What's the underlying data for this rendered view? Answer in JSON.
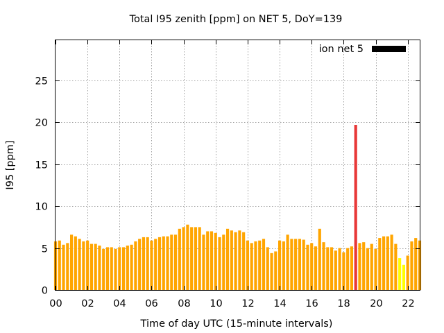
{
  "chart_data": {
    "type": "bar",
    "title": "Total I95 zenith [ppm] on NET 5, DoY=139",
    "xlabel": "Time of day UTC (15-minute intervals)",
    "ylabel": "I95 [ppm]",
    "xlim": [
      0,
      22.75
    ],
    "ylim": [
      0,
      29.8
    ],
    "x_interval_hours": 0.25,
    "x_tick_values": [
      0,
      2,
      4,
      6,
      8,
      10,
      12,
      14,
      16,
      18,
      20,
      22
    ],
    "x_tick_labels": [
      "00",
      "02",
      "04",
      "06",
      "08",
      "10",
      "12",
      "14",
      "16",
      "18",
      "20",
      "22"
    ],
    "y_tick_values": [
      0,
      5,
      10,
      15,
      20,
      25
    ],
    "y_tick_labels": [
      "0",
      "5",
      "10",
      "15",
      "20",
      "25"
    ],
    "grid": true,
    "legend": {
      "position": "top-right",
      "label": "ion net 5",
      "color": "#000000"
    },
    "colors": {
      "normal": "#ffa500",
      "low": "#ffff00",
      "high": "#e83838"
    },
    "series": [
      {
        "name": "ion net 5",
        "values": [
          5.8,
          5.9,
          5.4,
          5.6,
          6.6,
          6.4,
          6.1,
          5.8,
          5.9,
          5.5,
          5.5,
          5.3,
          4.9,
          5.1,
          5.1,
          4.9,
          5.1,
          5.1,
          5.3,
          5.4,
          5.8,
          6.1,
          6.3,
          6.3,
          5.9,
          6.1,
          6.3,
          6.4,
          6.4,
          6.6,
          6.6,
          7.3,
          7.5,
          7.8,
          7.5,
          7.5,
          7.5,
          6.6,
          7.0,
          7.0,
          6.8,
          6.3,
          6.6,
          7.3,
          7.1,
          6.9,
          7.1,
          6.9,
          5.9,
          5.6,
          5.8,
          5.9,
          6.1,
          5.1,
          4.4,
          4.6,
          5.9,
          5.8,
          6.6,
          6.1,
          6.1,
          6.1,
          6.0,
          5.4,
          5.6,
          5.2,
          7.3,
          5.7,
          5.1,
          5.1,
          4.7,
          5.0,
          4.5,
          5.0,
          5.2,
          19.7,
          5.6,
          5.7,
          5.0,
          5.5,
          4.9,
          6.2,
          6.4,
          6.4,
          6.6,
          5.5,
          3.8,
          3.0,
          4.1,
          5.8,
          6.2,
          5.9
        ],
        "colors": [
          "normal",
          "normal",
          "normal",
          "normal",
          "normal",
          "normal",
          "normal",
          "normal",
          "normal",
          "normal",
          "normal",
          "normal",
          "normal",
          "normal",
          "normal",
          "normal",
          "normal",
          "normal",
          "normal",
          "normal",
          "normal",
          "normal",
          "normal",
          "normal",
          "normal",
          "normal",
          "normal",
          "normal",
          "normal",
          "normal",
          "normal",
          "normal",
          "normal",
          "normal",
          "normal",
          "normal",
          "normal",
          "normal",
          "normal",
          "normal",
          "normal",
          "normal",
          "normal",
          "normal",
          "normal",
          "normal",
          "normal",
          "normal",
          "normal",
          "normal",
          "normal",
          "normal",
          "normal",
          "normal",
          "normal",
          "normal",
          "normal",
          "normal",
          "normal",
          "normal",
          "normal",
          "normal",
          "normal",
          "normal",
          "normal",
          "normal",
          "normal",
          "normal",
          "normal",
          "normal",
          "normal",
          "normal",
          "normal",
          "normal",
          "normal",
          "high",
          "normal",
          "normal",
          "normal",
          "normal",
          "normal",
          "normal",
          "normal",
          "normal",
          "normal",
          "normal",
          "low",
          "low",
          "normal",
          "normal",
          "normal",
          "normal"
        ]
      }
    ]
  }
}
